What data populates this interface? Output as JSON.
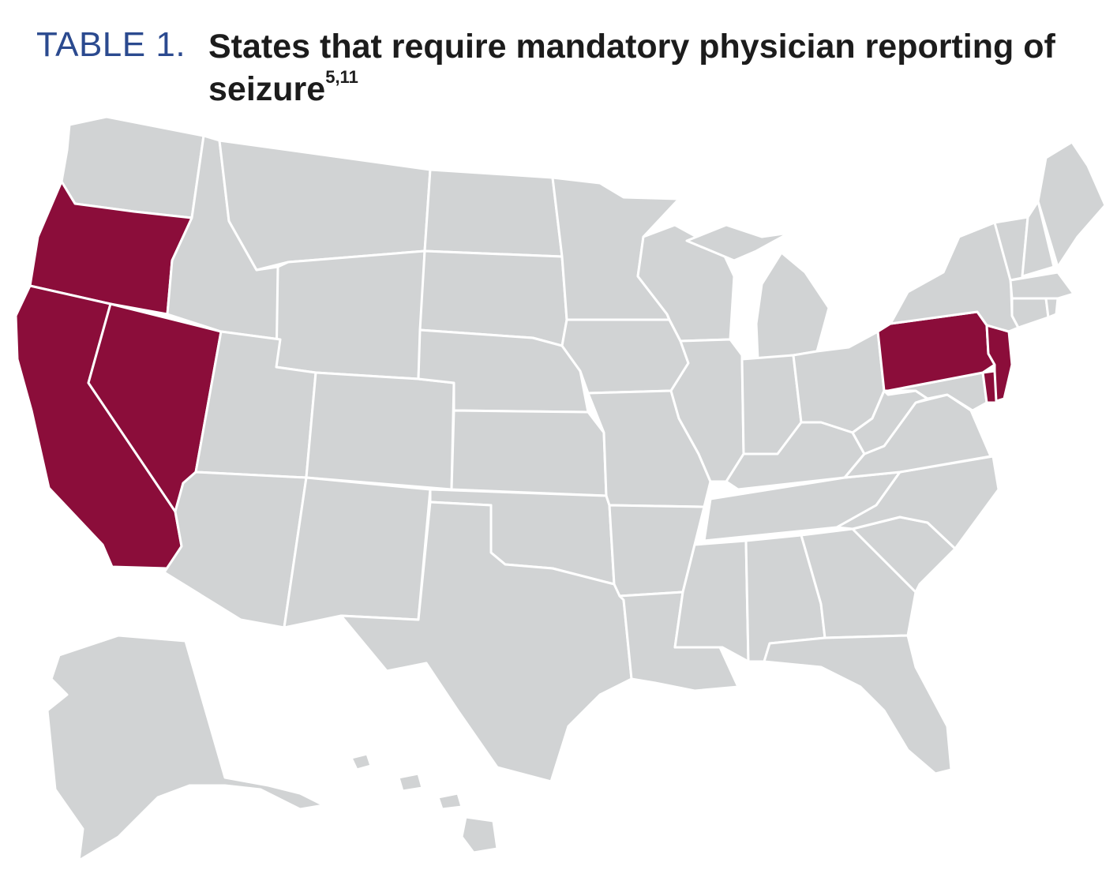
{
  "header": {
    "table_label": "TABLE 1.",
    "title": "States that require mandatory physician reporting of seizure",
    "title_superscript": "5,11"
  },
  "map": {
    "colors": {
      "required": "#8b0d3a",
      "not_required": "#d1d3d4",
      "border": "#ffffff"
    },
    "highlighted_states": [
      "Oregon",
      "California",
      "Nevada",
      "Pennsylvania",
      "New Jersey",
      "Delaware"
    ]
  }
}
